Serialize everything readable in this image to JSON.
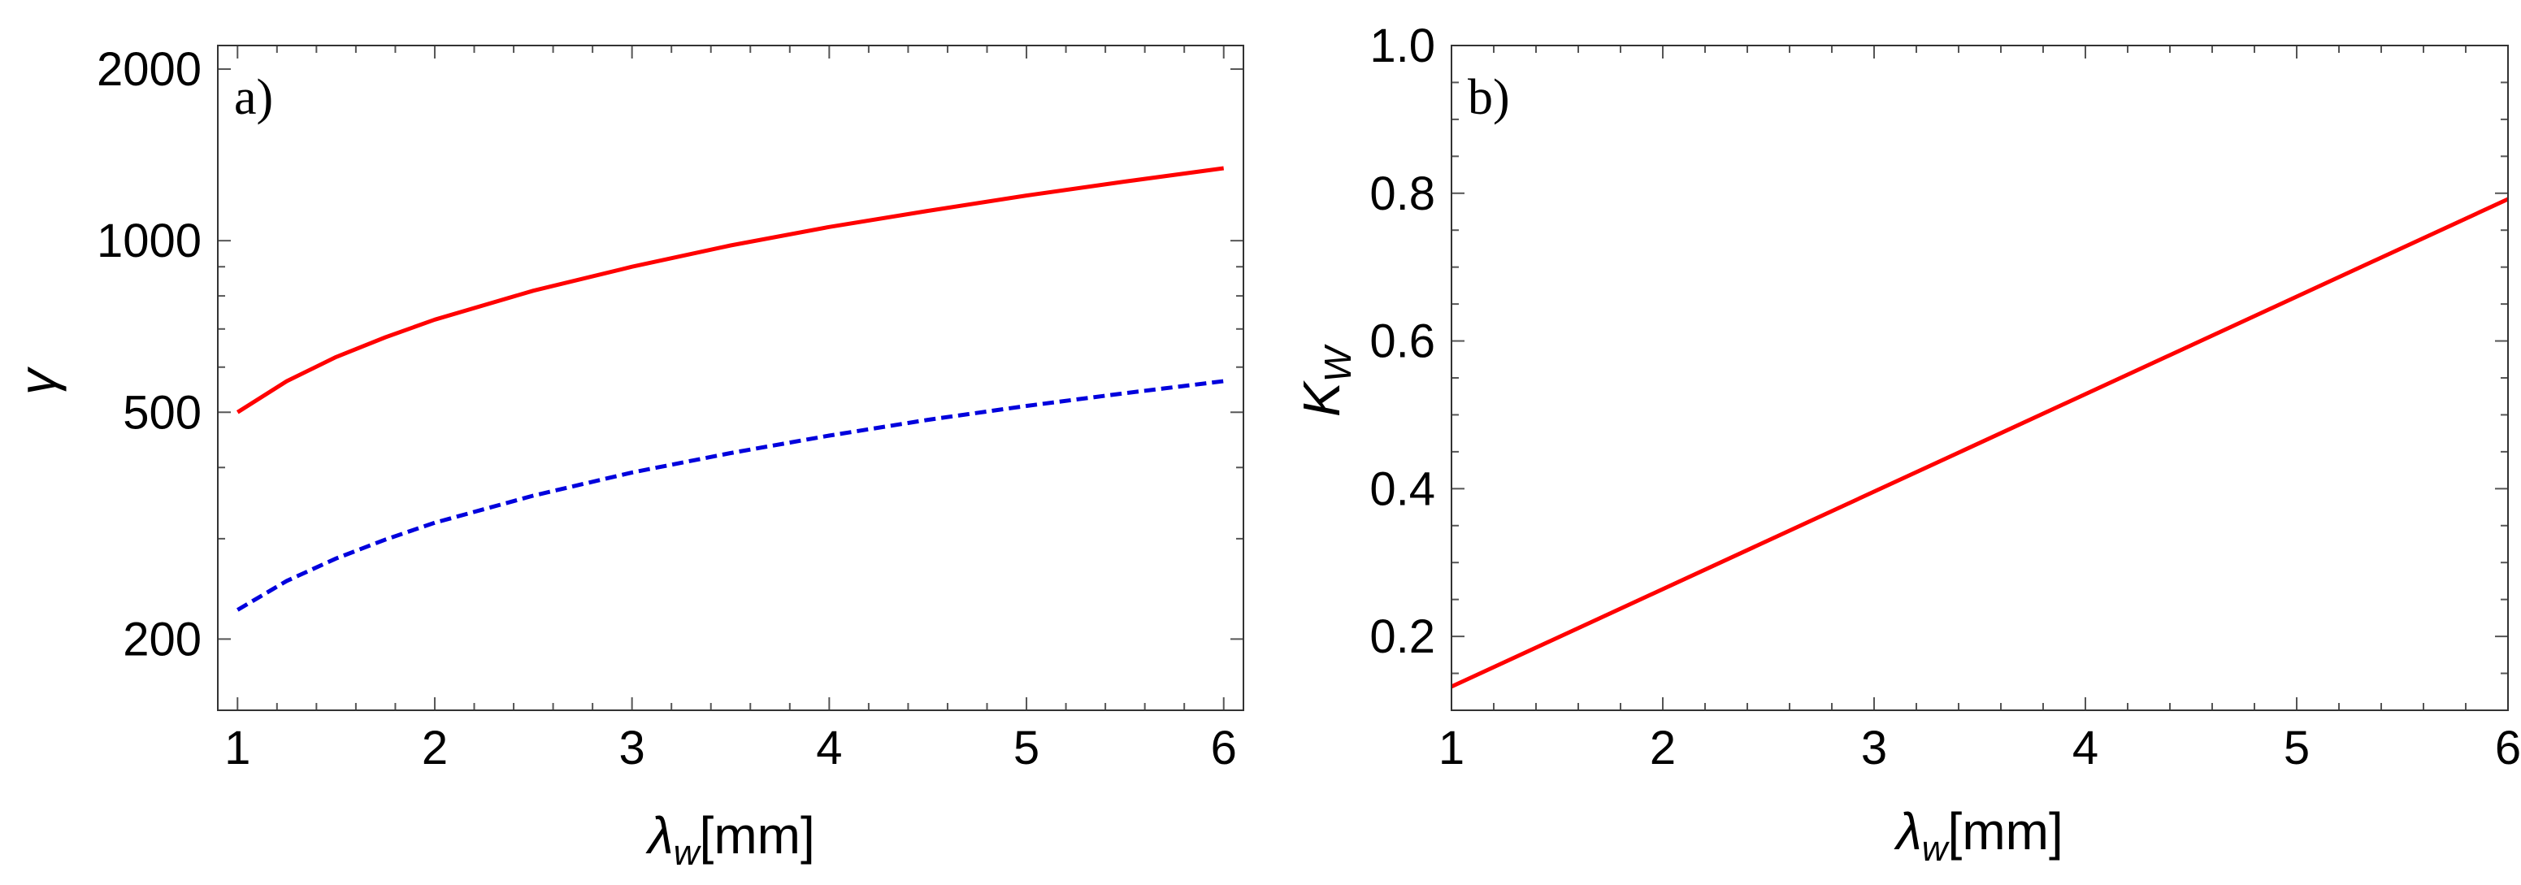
{
  "chart_data": [
    {
      "type": "line",
      "panel_label": "a)",
      "xlabel": {
        "symbol": "λ",
        "subscript": "w",
        "unit": "[mm]"
      },
      "ylabel": "γ",
      "xlim": [
        0.9,
        6.1
      ],
      "ylim": [
        150,
        2200
      ],
      "yscale": "log",
      "xticks": [
        1,
        2,
        3,
        4,
        5,
        6
      ],
      "xtick_labels": [
        "1",
        "2",
        "3",
        "4",
        "5",
        "6"
      ],
      "yticks": [
        200,
        500,
        1000,
        2000
      ],
      "ytick_labels": [
        "200",
        "500",
        "1000",
        "2000"
      ],
      "grid": false,
      "series": [
        {
          "style": "solid",
          "color": "#ff0000",
          "x": [
            1,
            1.25,
            1.5,
            1.75,
            2,
            2.5,
            3,
            3.5,
            4,
            4.5,
            5,
            5.5,
            6
          ],
          "y": [
            500,
            567,
            625,
            677,
            727,
            817,
            900,
            981,
            1057,
            1128,
            1200,
            1270,
            1340
          ]
        },
        {
          "style": "dashed",
          "color": "#0000dd",
          "x": [
            1,
            1.25,
            1.5,
            1.75,
            2,
            2.5,
            3,
            3.5,
            4,
            4.5,
            5,
            5.5,
            6
          ],
          "y": [
            225,
            253,
            277,
            299,
            320,
            357,
            392,
            424,
            455,
            485,
            513,
            540,
            567
          ]
        }
      ]
    },
    {
      "type": "line",
      "panel_label": "b)",
      "xlabel": {
        "symbol": "λ",
        "subscript": "w",
        "unit": "[mm]"
      },
      "ylabel": {
        "symbol": "K",
        "subscript": "W"
      },
      "xlim": [
        1,
        6
      ],
      "ylim": [
        0.1,
        1.0
      ],
      "yscale": "linear",
      "xticks": [
        1,
        2,
        3,
        4,
        5,
        6
      ],
      "xtick_labels": [
        "1",
        "2",
        "3",
        "4",
        "5",
        "6"
      ],
      "yticks": [
        0.2,
        0.4,
        0.6,
        0.8,
        1.0
      ],
      "ytick_labels": [
        "0.2",
        "0.4",
        "0.6",
        "0.8",
        "1.0"
      ],
      "grid": false,
      "series": [
        {
          "style": "solid",
          "color": "#ff0000",
          "x": [
            1,
            6
          ],
          "y": [
            0.132,
            0.792
          ]
        }
      ]
    }
  ]
}
